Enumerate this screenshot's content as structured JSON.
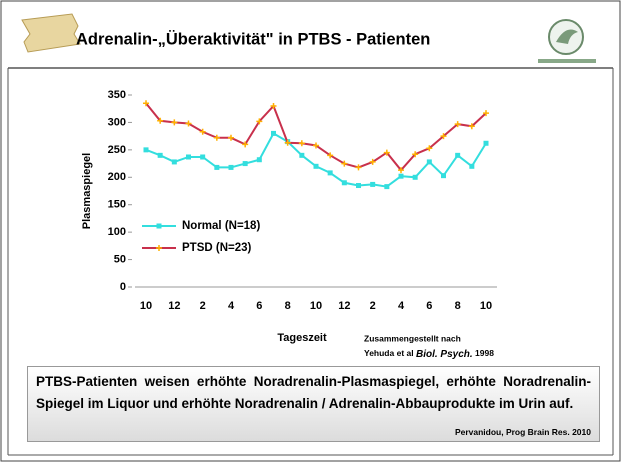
{
  "header": {
    "title": "Adrenalin-„Überaktivität\" in PTBS - Patienten"
  },
  "chart_data": {
    "type": "line",
    "ylabel": "Plasmaspiegel",
    "xlabel": "Tageszeit",
    "categories": [
      "10",
      null,
      "12",
      null,
      "2",
      null,
      "4",
      null,
      "6",
      null,
      "8",
      null,
      "10",
      null,
      "12",
      null,
      "2",
      null,
      "4",
      null,
      "6",
      null,
      "8",
      null,
      "10"
    ],
    "series": [
      {
        "name": "Normal (N=18)",
        "color": "#33dede",
        "marker_color": "#33dede",
        "values": [
          250,
          240,
          228,
          237,
          237,
          218,
          218,
          225,
          232,
          280,
          265,
          240,
          220,
          208,
          190,
          185,
          187,
          183,
          202,
          200,
          228,
          203,
          240,
          220,
          262
        ]
      },
      {
        "name": "PTSD (N=23)",
        "color": "#c8304c",
        "marker_color": "#ffb000",
        "values": [
          335,
          303,
          300,
          298,
          283,
          272,
          272,
          260,
          302,
          330,
          263,
          262,
          258,
          240,
          225,
          218,
          228,
          245,
          213,
          242,
          253,
          275,
          297,
          293,
          317
        ]
      }
    ],
    "ylim": [
      0,
      350
    ],
    "yticks": [
      0,
      50,
      100,
      150,
      200,
      250,
      300,
      350
    ],
    "source_line1": "Zusammengestellt nach",
    "source_authors": "Yehuda et al ",
    "source_journal": "Biol. Psych.",
    "source_year": " 1998"
  },
  "caption": {
    "text": "PTBS-Patienten weisen erhöhte Noradrenalin-Plasmaspiegel, erhöhte Noradrenalin-Spiegel im Liquor und erhöhte Noradrenalin / Adrenalin-Abbauprodukte im Urin auf.",
    "reference": "Pervanidou, Prog Brain Res. 2010"
  }
}
